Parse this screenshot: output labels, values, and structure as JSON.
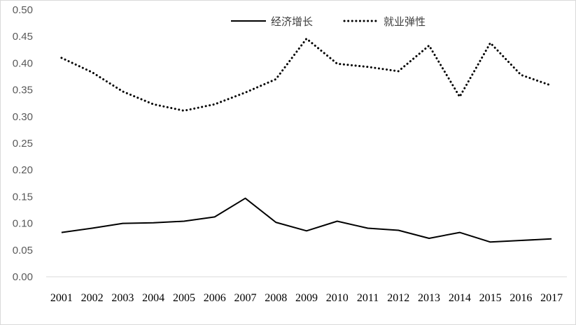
{
  "chart_data": {
    "type": "line",
    "title": "",
    "xlabel": "",
    "ylabel": "",
    "x": [
      "2001",
      "2002",
      "2003",
      "2004",
      "2005",
      "2006",
      "2007",
      "2008",
      "2009",
      "2010",
      "2011",
      "2012",
      "2013",
      "2014",
      "2015",
      "2016",
      "2017"
    ],
    "ylim": [
      0,
      0.5
    ],
    "yticks": [
      "0.00",
      "0.05",
      "0.10",
      "0.15",
      "0.20",
      "0.25",
      "0.30",
      "0.35",
      "0.40",
      "0.45",
      "0.50"
    ],
    "grid": false,
    "legend_position": "top-center",
    "series": [
      {
        "name": "经济增长",
        "style": "solid",
        "color": "#000000",
        "values": [
          0.083,
          0.091,
          0.1,
          0.101,
          0.104,
          0.112,
          0.147,
          0.102,
          0.086,
          0.104,
          0.091,
          0.087,
          0.072,
          0.083,
          0.065,
          0.068,
          0.071
        ]
      },
      {
        "name": "就业弹性",
        "style": "dotted",
        "color": "#000000",
        "values": [
          0.41,
          0.383,
          0.347,
          0.323,
          0.311,
          0.323,
          0.345,
          0.37,
          0.446,
          0.399,
          0.393,
          0.385,
          0.433,
          0.337,
          0.438,
          0.378,
          0.358
        ]
      }
    ]
  }
}
